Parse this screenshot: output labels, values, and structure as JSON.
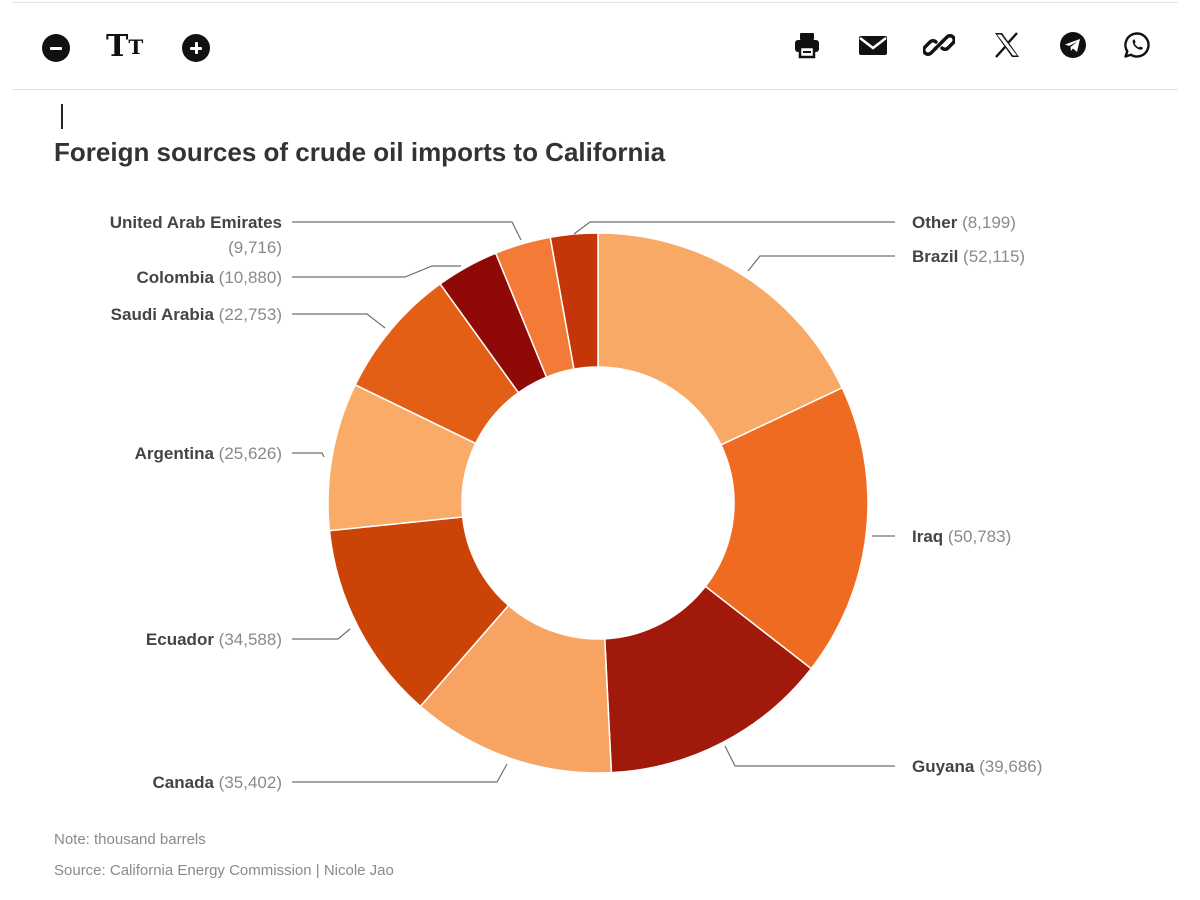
{
  "toolbar": {
    "decrease_font_icon": "minus-circle-icon",
    "font_size_icon": "text-size-icon",
    "font_size_glyph_big": "T",
    "font_size_glyph_small": "T",
    "increase_font_icon": "plus-circle-icon",
    "share_icons": [
      "print-icon",
      "email-icon",
      "link-icon",
      "x-icon",
      "telegram-icon",
      "whatsapp-icon"
    ]
  },
  "chart_data": {
    "type": "pie",
    "title": "Foreign sources of crude oil imports to California",
    "donut": true,
    "slices": [
      {
        "label": "Brazil",
        "value": 52115,
        "value_text": "(52,115)",
        "color": "#F8A965"
      },
      {
        "label": "Iraq",
        "value": 50783,
        "value_text": "(50,783)",
        "color": "#F06B22"
      },
      {
        "label": "Guyana",
        "value": 39686,
        "value_text": "(39,686)",
        "color": "#A0190A"
      },
      {
        "label": "Canada",
        "value": 35402,
        "value_text": "(35,402)",
        "color": "#F7A462"
      },
      {
        "label": "Ecuador",
        "value": 34588,
        "value_text": "(34,588)",
        "color": "#CC4307"
      },
      {
        "label": "Argentina",
        "value": 25626,
        "value_text": "(25,626)",
        "color": "#FBAB68"
      },
      {
        "label": "Saudi Arabia",
        "value": 22753,
        "value_text": "(22,753)",
        "color": "#E45F16"
      },
      {
        "label": "Colombia",
        "value": 10880,
        "value_text": "(10,880)",
        "color": "#8F0A06"
      },
      {
        "label": "United Arab Emirates",
        "value": 9716,
        "value_text": "(9,716)",
        "color": "#F47A37"
      },
      {
        "label": "Other",
        "value": 8199,
        "value_text": "(8,199)",
        "color": "#C43507"
      }
    ],
    "unit_note": "Note: thousand barrels",
    "source": "Source: California Energy Commission | Nicole Jao"
  }
}
